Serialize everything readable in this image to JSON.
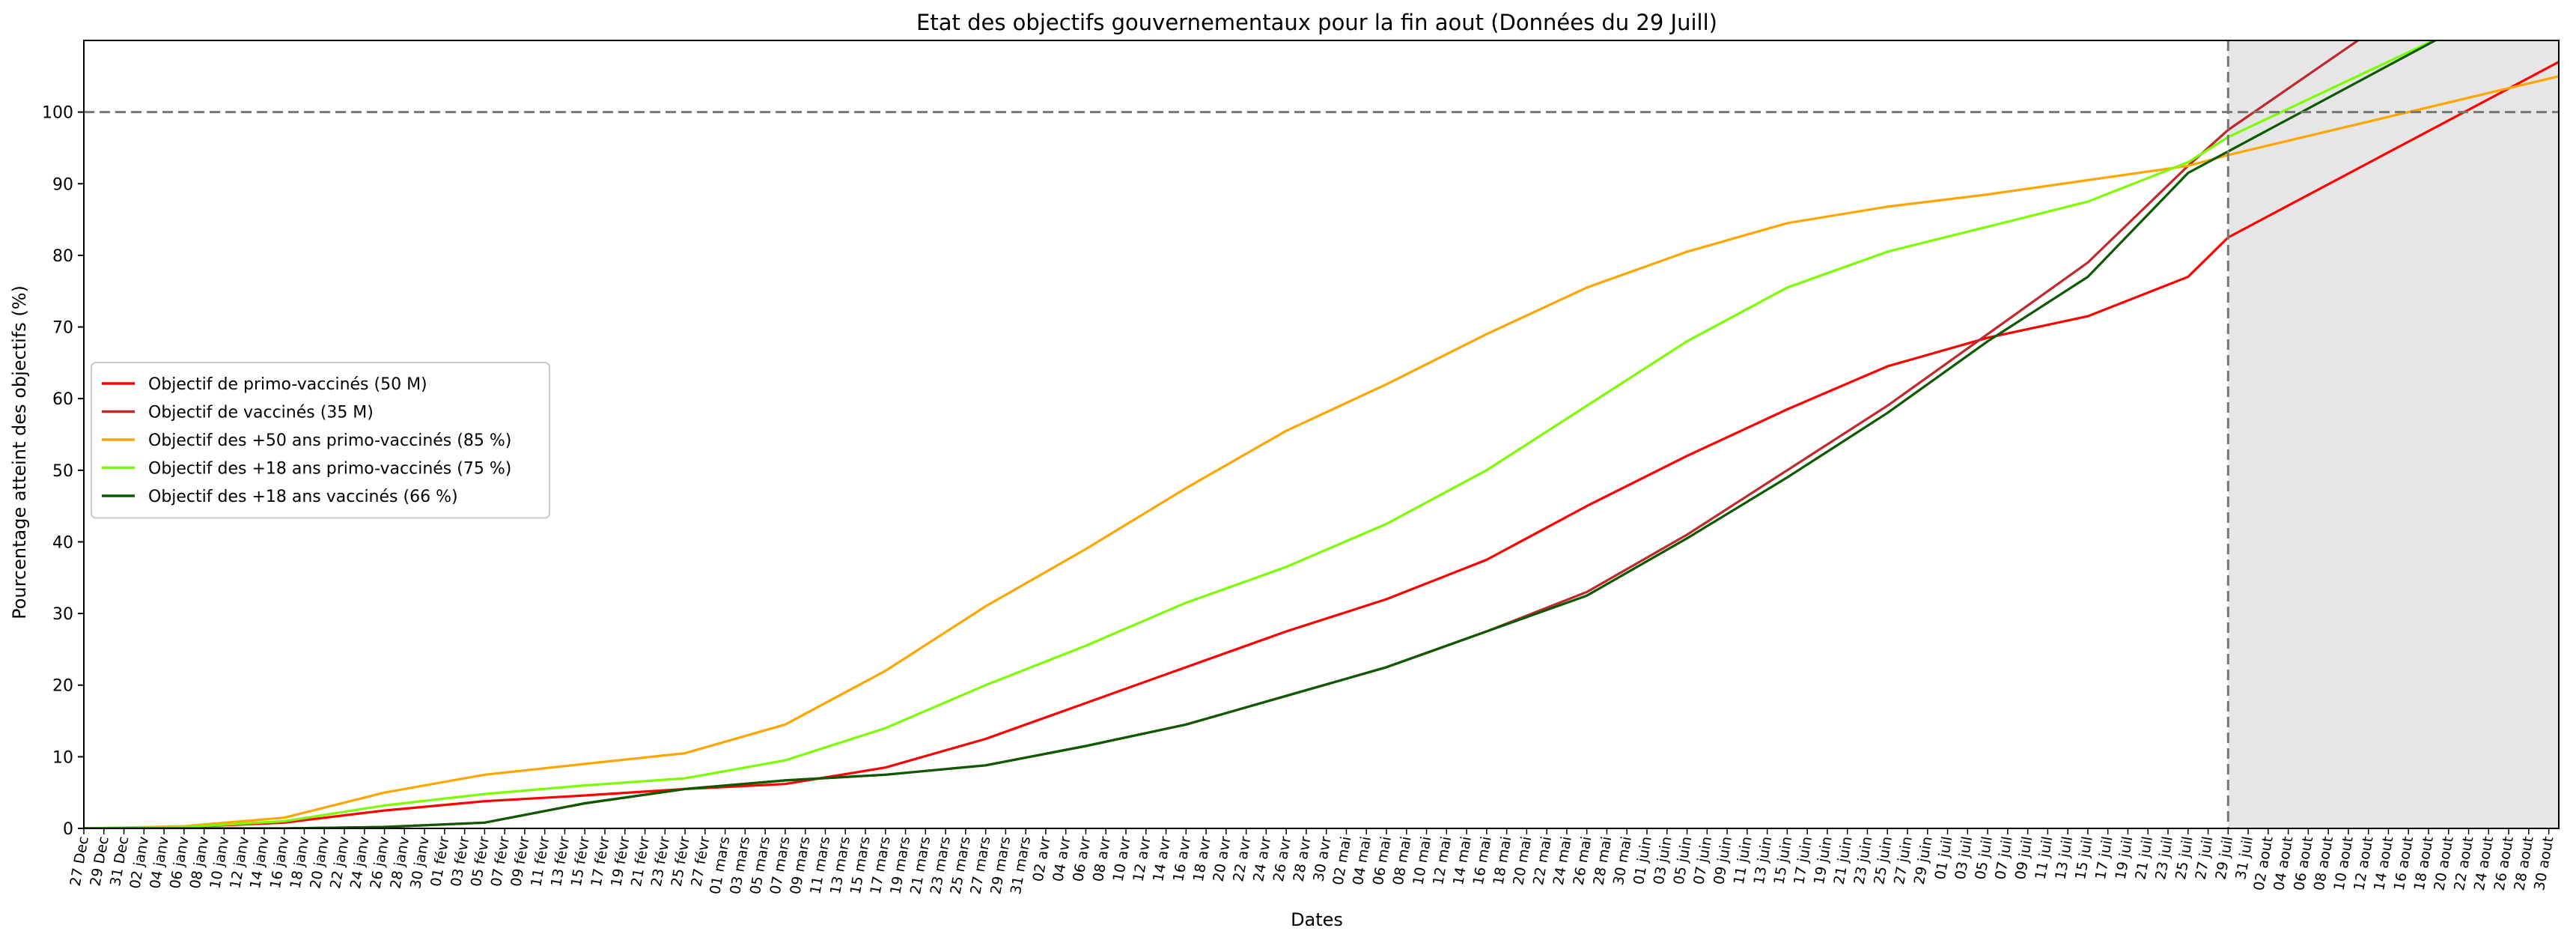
{
  "chart_data": {
    "type": "line",
    "title": "Etat des objectifs gouvernementaux pour la fin aout (Données du 29 Juill)",
    "xlabel": "Dates",
    "ylabel": "Pourcentage atteint des objectifs (%)",
    "ylim": [
      0,
      110
    ],
    "yticks": [
      0,
      10,
      20,
      30,
      40,
      50,
      60,
      70,
      80,
      90,
      100
    ],
    "xlim": [
      "2020-12-27",
      "2021-08-31"
    ],
    "data_last_date": "2021-07-29",
    "reference_line": 100,
    "projection_shaded_region": [
      "2021-07-29",
      "2021-08-31"
    ],
    "grid": false,
    "legend_location": "center-left",
    "month_abbrev": [
      "janv",
      "févr",
      "mars",
      "avr",
      "mai",
      "juin",
      "juil",
      "aout"
    ],
    "december_abbrev": "Dec",
    "series": [
      {
        "name": "Objectif de primo-vaccinés (50 M)",
        "color": "#ff0000",
        "x": [
          "2020-12-27",
          "2021-01-06",
          "2021-01-16",
          "2021-01-26",
          "2021-02-05",
          "2021-02-15",
          "2021-02-25",
          "2021-03-07",
          "2021-03-17",
          "2021-03-27",
          "2021-04-06",
          "2021-04-16",
          "2021-04-26",
          "2021-05-06",
          "2021-05-16",
          "2021-05-26",
          "2021-06-05",
          "2021-06-15",
          "2021-06-25",
          "2021-07-05",
          "2021-07-15",
          "2021-07-25",
          "2021-07-29",
          "2021-08-31"
        ],
        "y": [
          0,
          0.2,
          0.8,
          2.5,
          3.8,
          4.6,
          5.5,
          6.2,
          8.5,
          12.5,
          17.5,
          22.5,
          27.5,
          32,
          37.5,
          45,
          52,
          58.5,
          64.5,
          68.5,
          71.5,
          77,
          82.5,
          107
        ]
      },
      {
        "name": "Objectif de vaccinés (35 M)",
        "color": "#c0282d",
        "x": [
          "2020-12-27",
          "2021-01-16",
          "2021-01-26",
          "2021-02-05",
          "2021-02-15",
          "2021-02-25",
          "2021-03-07",
          "2021-03-17",
          "2021-03-27",
          "2021-04-06",
          "2021-04-16",
          "2021-04-26",
          "2021-05-06",
          "2021-05-16",
          "2021-05-26",
          "2021-06-05",
          "2021-06-15",
          "2021-06-25",
          "2021-07-05",
          "2021-07-15",
          "2021-07-25",
          "2021-07-29",
          "2021-08-12"
        ],
        "y": [
          0,
          0,
          0.2,
          0.8,
          3.5,
          5.5,
          6.7,
          7.5,
          8.8,
          11.5,
          14.5,
          18.5,
          22.5,
          27.5,
          33,
          41,
          50,
          59,
          69,
          79,
          92.5,
          97.5,
          111
        ]
      },
      {
        "name": "Objectif des +50 ans primo-vaccinés (85 %)",
        "color": "#ffa500",
        "x": [
          "2020-12-27",
          "2021-01-06",
          "2021-01-16",
          "2021-01-26",
          "2021-02-05",
          "2021-02-15",
          "2021-02-25",
          "2021-03-07",
          "2021-03-17",
          "2021-03-27",
          "2021-04-06",
          "2021-04-16",
          "2021-04-26",
          "2021-05-06",
          "2021-05-16",
          "2021-05-26",
          "2021-06-05",
          "2021-06-15",
          "2021-06-25",
          "2021-07-05",
          "2021-07-15",
          "2021-07-25",
          "2021-07-29",
          "2021-08-31"
        ],
        "y": [
          0,
          0.3,
          1.5,
          5,
          7.5,
          9,
          10.5,
          14.5,
          22,
          31,
          39,
          47.5,
          55.5,
          62,
          69,
          75.5,
          80.5,
          84.5,
          86.8,
          88.5,
          90.5,
          92.5,
          94,
          105
        ]
      },
      {
        "name": "Objectif des +18 ans primo-vaccinés (75 %)",
        "color": "#7cfc00",
        "x": [
          "2020-12-27",
          "2021-01-06",
          "2021-01-16",
          "2021-01-26",
          "2021-02-05",
          "2021-02-15",
          "2021-02-25",
          "2021-03-07",
          "2021-03-17",
          "2021-03-27",
          "2021-04-06",
          "2021-04-16",
          "2021-04-26",
          "2021-05-06",
          "2021-05-16",
          "2021-05-26",
          "2021-06-05",
          "2021-06-15",
          "2021-06-25",
          "2021-07-05",
          "2021-07-15",
          "2021-07-25",
          "2021-07-29",
          "2021-08-20"
        ],
        "y": [
          0,
          0.2,
          1,
          3.2,
          4.8,
          6,
          7,
          9.5,
          14,
          20,
          25.5,
          31.5,
          36.5,
          42.5,
          50,
          59,
          68,
          75.5,
          80.5,
          84,
          87.5,
          93,
          96.5,
          111
        ]
      },
      {
        "name": "Objectif des +18 ans vaccinés (66 %)",
        "color": "#0b5a00",
        "x": [
          "2020-12-27",
          "2021-01-16",
          "2021-01-26",
          "2021-02-05",
          "2021-02-15",
          "2021-02-25",
          "2021-03-07",
          "2021-03-17",
          "2021-03-27",
          "2021-04-06",
          "2021-04-16",
          "2021-04-26",
          "2021-05-06",
          "2021-05-16",
          "2021-05-26",
          "2021-06-05",
          "2021-06-15",
          "2021-06-25",
          "2021-07-05",
          "2021-07-15",
          "2021-07-25",
          "2021-07-29",
          "2021-08-20"
        ],
        "y": [
          0,
          0,
          0.2,
          0.8,
          3.5,
          5.5,
          6.7,
          7.5,
          8.8,
          11.5,
          14.5,
          18.5,
          22.5,
          27.5,
          32.5,
          40.5,
          49,
          58,
          68,
          77,
          91.5,
          94.5,
          111
        ]
      }
    ]
  }
}
